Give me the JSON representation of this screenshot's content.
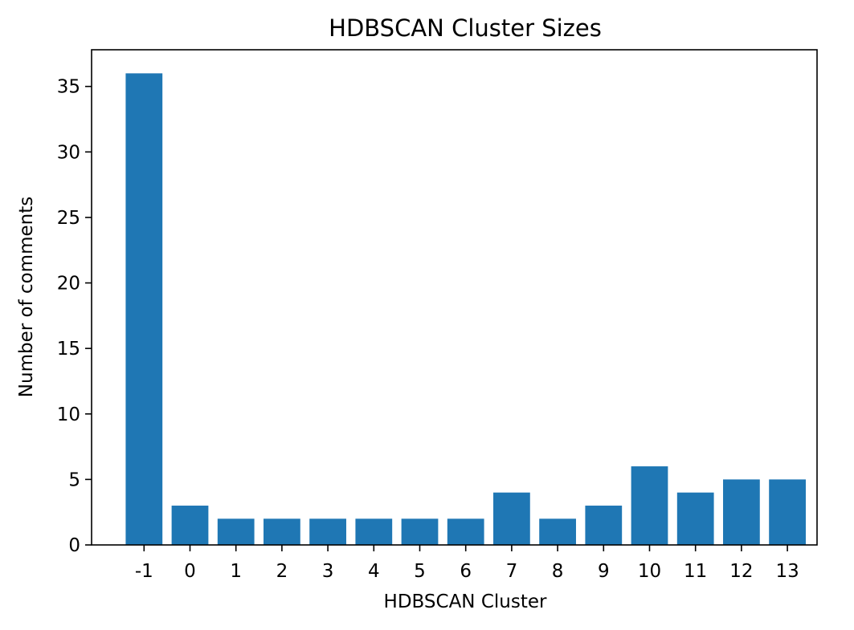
{
  "chart_data": {
    "type": "bar",
    "title": "HDBSCAN Cluster Sizes",
    "xlabel": "HDBSCAN Cluster",
    "ylabel": "Number of comments",
    "categories": [
      "-1",
      "0",
      "1",
      "2",
      "3",
      "4",
      "5",
      "6",
      "7",
      "8",
      "9",
      "10",
      "11",
      "12",
      "13"
    ],
    "values": [
      36,
      3,
      2,
      2,
      2,
      2,
      2,
      2,
      4,
      2,
      3,
      6,
      4,
      5,
      5
    ],
    "ylim": [
      0,
      37.8
    ],
    "yticks": [
      "0",
      "5",
      "10",
      "15",
      "20",
      "25",
      "30",
      "35"
    ],
    "bar_color": "#1f77b4",
    "grid": false,
    "legend": "none"
  }
}
